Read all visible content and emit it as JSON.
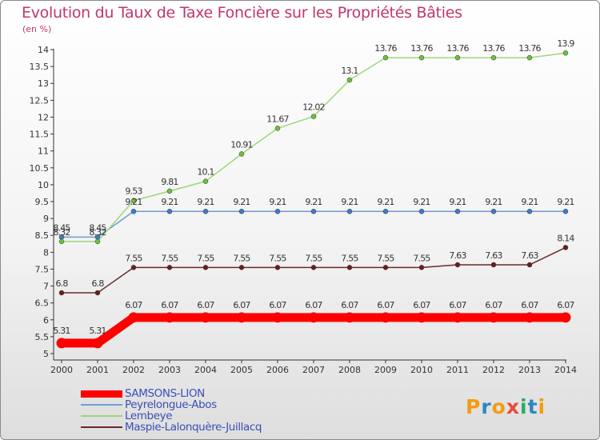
{
  "title": "Evolution du Taux de Taxe Foncière sur les Propriétés Bâties",
  "unit_label": "(en %)",
  "logo": {
    "text": "Proxiti",
    "colors": [
      "#f39c12",
      "#2e86c1",
      "#f39c12",
      "#e74c3c",
      "#27ae60",
      "#2e86c1",
      "#f39c12"
    ]
  },
  "chart_data": {
    "type": "line",
    "title": "Evolution du Taux de Taxe Foncière sur les Propriétés Bâties",
    "ylabel": "(en %)",
    "xlabel": "",
    "categories": [
      "2000",
      "2001",
      "2002",
      "2003",
      "2004",
      "2005",
      "2006",
      "2007",
      "2008",
      "2009",
      "2010",
      "2011",
      "2012",
      "2013",
      "2014"
    ],
    "yticks": [
      "5",
      "5.5",
      "6",
      "6.5",
      "7",
      "7.5",
      "8",
      "8.5",
      "9",
      "9.5",
      "10",
      "10.5",
      "11",
      "11.5",
      "12",
      "12.5",
      "13",
      "13.5",
      "14"
    ],
    "ylim": [
      5,
      14
    ],
    "grid": false,
    "legend_position": "bottom-left",
    "series": [
      {
        "name": "SAMSONS-LION",
        "color": "#ff0000",
        "emphasis": true,
        "values": [
          5.31,
          5.31,
          6.07,
          6.07,
          6.07,
          6.07,
          6.07,
          6.07,
          6.07,
          6.07,
          6.07,
          6.07,
          6.07,
          6.07,
          6.07
        ],
        "labels": [
          "5.31",
          "5.31",
          "6.07",
          "6.07",
          "6.07",
          "6.07",
          "6.07",
          "6.07",
          "6.07",
          "6.07",
          "6.07",
          "6.07",
          "6.07",
          "6.07",
          "6.07"
        ]
      },
      {
        "name": "Peyrelongue-Abos",
        "color": "#6d9fcf",
        "marker": "#3b7fc4",
        "values": [
          8.45,
          8.45,
          9.21,
          9.21,
          9.21,
          9.21,
          9.21,
          9.21,
          9.21,
          9.21,
          9.21,
          9.21,
          9.21,
          9.21,
          9.21
        ],
        "labels": [
          "8.45",
          "8.45",
          "9.21",
          "9.21",
          "9.21",
          "9.21",
          "9.21",
          "9.21",
          "9.21",
          "9.21",
          "9.21",
          "9.21",
          "9.21",
          "9.21",
          "9.21"
        ]
      },
      {
        "name": "Lembeye",
        "color": "#9ed77a",
        "marker": "#6cc13b",
        "values": [
          8.32,
          8.32,
          9.53,
          9.81,
          10.1,
          10.91,
          11.67,
          12.02,
          13.1,
          13.76,
          13.76,
          13.76,
          13.76,
          13.76,
          13.9
        ],
        "labels": [
          "8.32",
          "8.32",
          "9.53",
          "9.81",
          "10.1",
          "10.91",
          "11.67",
          "12.02",
          "13.1",
          "13.76",
          "13.76",
          "13.76",
          "13.76",
          "13.76",
          "13.9"
        ]
      },
      {
        "name": "Maspie-Lalonquère-Juillacq",
        "color": "#6b2a2a",
        "marker": "#6b1e1e",
        "values": [
          6.8,
          6.8,
          7.55,
          7.55,
          7.55,
          7.55,
          7.55,
          7.55,
          7.55,
          7.55,
          7.55,
          7.63,
          7.63,
          7.63,
          8.14
        ],
        "labels": [
          "6.8",
          "6.8",
          "7.55",
          "7.55",
          "7.55",
          "7.55",
          "7.55",
          "7.55",
          "7.55",
          "7.55",
          "7.55",
          "7.63",
          "7.63",
          "7.63",
          "8.14"
        ]
      }
    ]
  }
}
